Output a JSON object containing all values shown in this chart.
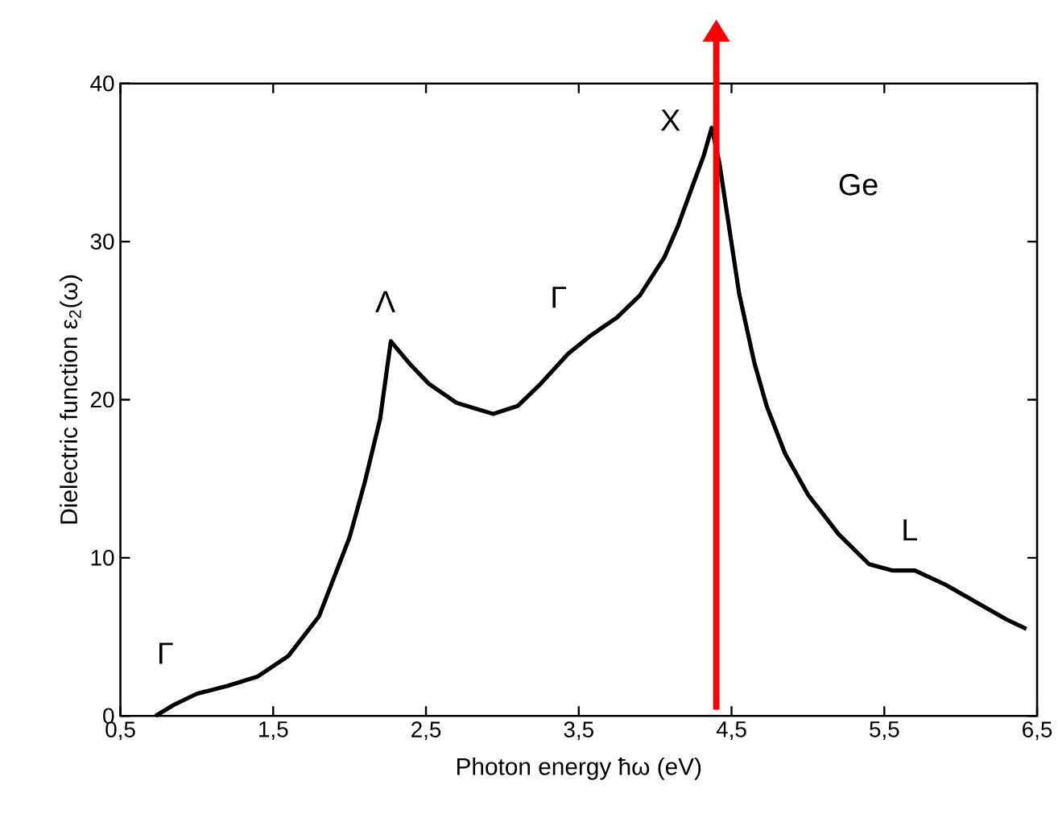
{
  "chart_data": {
    "type": "line",
    "xlabel": "Photon energy  ħω (eV)",
    "ylabel": "Dielectric function ε$_{2}$(ω)",
    "xlim": [
      0.5,
      6.5
    ],
    "ylim": [
      0,
      40
    ],
    "xticks": [
      {
        "value": 0.5,
        "label": "0,5"
      },
      {
        "value": 1.5,
        "label": "1,5"
      },
      {
        "value": 2.5,
        "label": "2,5"
      },
      {
        "value": 3.5,
        "label": "3,5"
      },
      {
        "value": 4.5,
        "label": "4,5"
      },
      {
        "value": 5.5,
        "label": "5,5"
      },
      {
        "value": 6.5,
        "label": "6,5"
      }
    ],
    "yticks": [
      0,
      10,
      20,
      30,
      40
    ],
    "series": [
      {
        "color": "#000000",
        "x": [
          0.73,
          0.85,
          1.0,
          1.2,
          1.4,
          1.6,
          1.8,
          2.0,
          2.1,
          2.2,
          2.27,
          2.4,
          2.52,
          2.7,
          2.94,
          3.1,
          3.25,
          3.43,
          3.57,
          3.75,
          3.9,
          4.06,
          4.15,
          4.24,
          4.32,
          4.37,
          4.42,
          4.47,
          4.55,
          4.65,
          4.73,
          4.85,
          5.0,
          5.2,
          5.4,
          5.55,
          5.7,
          5.9,
          6.1,
          6.3,
          6.43
        ],
        "values": [
          0,
          0.7,
          1.4,
          1.9,
          2.5,
          3.8,
          6.3,
          11.3,
          14.8,
          18.8,
          23.7,
          22.2,
          21.0,
          19.8,
          19.1,
          19.6,
          21.0,
          22.9,
          24.0,
          25.2,
          26.6,
          29.0,
          31.0,
          33.4,
          35.5,
          37.2,
          35.0,
          31.8,
          26.7,
          22.3,
          19.6,
          16.6,
          14.0,
          11.5,
          9.6,
          9.2,
          9.2,
          8.3,
          7.2,
          6.1,
          5.5
        ]
      }
    ],
    "ref_lines": [
      {
        "axis": "x",
        "value": 4.4,
        "color": "#ff0000"
      }
    ],
    "annotations": [
      "Γ",
      "Λ",
      "Γ",
      "X",
      "Ge",
      "L"
    ],
    "grid": false,
    "marker": "none",
    "line_style": "solid"
  }
}
